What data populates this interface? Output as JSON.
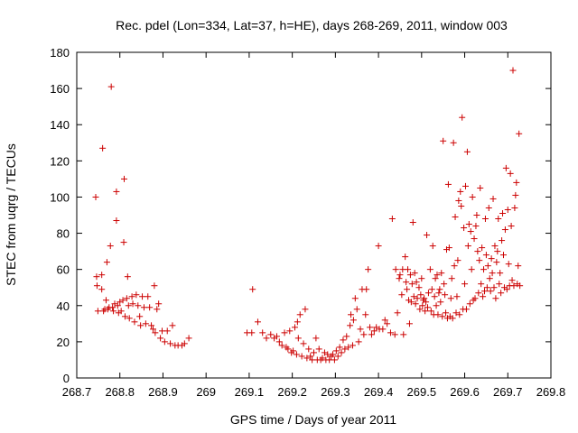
{
  "chart_data": {
    "type": "scatter",
    "title": "Rec. pdel (Lon=334, Lat=37, h=HE), days 268-269, 2011, window 003",
    "xlabel": "GPS time / Days of year 2011",
    "ylabel": "STEC from uqrg / TECUs",
    "xlim": [
      268.7,
      269.8
    ],
    "ylim": [
      0,
      180
    ],
    "x_ticks": [
      268.7,
      268.8,
      268.9,
      269.0,
      269.1,
      269.2,
      269.3,
      269.4,
      269.5,
      269.6,
      269.7,
      269.8
    ],
    "x_tick_labels": [
      "268.7",
      "268.8",
      "268.9",
      "269",
      "269.1",
      "269.2",
      "269.3",
      "269.4",
      "269.5",
      "269.6",
      "269.7",
      "269.8"
    ],
    "y_ticks": [
      0,
      20,
      40,
      60,
      80,
      100,
      120,
      140,
      160,
      180
    ],
    "y_tick_labels": [
      "0",
      "20",
      "40",
      "60",
      "80",
      "100",
      "120",
      "140",
      "160",
      "180"
    ],
    "grid": false,
    "marker": "+",
    "color": "#cc0000",
    "points": [
      [
        268.744,
        100
      ],
      [
        268.746,
        56
      ],
      [
        268.747,
        51
      ],
      [
        268.749,
        37
      ],
      [
        268.758,
        57
      ],
      [
        268.758,
        49
      ],
      [
        268.76,
        127
      ],
      [
        268.762,
        37
      ],
      [
        268.765,
        38
      ],
      [
        268.768,
        43
      ],
      [
        268.77,
        64
      ],
      [
        268.772,
        38
      ],
      [
        268.775,
        39
      ],
      [
        268.778,
        73
      ],
      [
        268.78,
        161
      ],
      [
        268.783,
        39
      ],
      [
        268.785,
        37
      ],
      [
        268.788,
        41
      ],
      [
        268.792,
        103
      ],
      [
        268.792,
        87
      ],
      [
        268.795,
        40
      ],
      [
        268.797,
        36
      ],
      [
        268.8,
        42
      ],
      [
        268.803,
        37
      ],
      [
        268.807,
        43
      ],
      [
        268.809,
        75
      ],
      [
        268.81,
        110
      ],
      [
        268.812,
        34
      ],
      [
        268.816,
        44
      ],
      [
        268.818,
        56
      ],
      [
        268.82,
        40
      ],
      [
        268.822,
        33
      ],
      [
        268.828,
        45
      ],
      [
        268.83,
        41
      ],
      [
        268.834,
        31
      ],
      [
        268.838,
        46
      ],
      [
        268.842,
        40
      ],
      [
        268.846,
        34
      ],
      [
        268.848,
        29
      ],
      [
        268.852,
        45
      ],
      [
        268.856,
        39
      ],
      [
        268.86,
        30
      ],
      [
        268.865,
        45
      ],
      [
        268.869,
        39
      ],
      [
        268.873,
        29
      ],
      [
        268.877,
        27
      ],
      [
        268.88,
        51
      ],
      [
        268.882,
        25
      ],
      [
        268.886,
        38
      ],
      [
        268.89,
        41
      ],
      [
        268.894,
        22
      ],
      [
        268.898,
        26
      ],
      [
        268.904,
        20
      ],
      [
        268.91,
        26
      ],
      [
        268.917,
        19
      ],
      [
        268.922,
        29
      ],
      [
        268.928,
        18
      ],
      [
        268.935,
        18
      ],
      [
        268.944,
        18
      ],
      [
        268.95,
        19
      ],
      [
        268.96,
        22
      ],
      [
        269.095,
        25
      ],
      [
        269.106,
        25
      ],
      [
        269.108,
        49
      ],
      [
        269.12,
        31
      ],
      [
        269.131,
        25
      ],
      [
        269.14,
        22
      ],
      [
        269.15,
        24
      ],
      [
        269.158,
        22
      ],
      [
        269.164,
        23
      ],
      [
        269.17,
        20
      ],
      [
        269.176,
        18
      ],
      [
        269.182,
        25
      ],
      [
        269.186,
        17
      ],
      [
        269.19,
        16
      ],
      [
        269.194,
        26
      ],
      [
        269.198,
        14
      ],
      [
        269.202,
        15
      ],
      [
        269.206,
        28
      ],
      [
        269.21,
        13
      ],
      [
        269.212,
        31
      ],
      [
        269.214,
        22
      ],
      [
        269.218,
        35
      ],
      [
        269.222,
        12
      ],
      [
        269.226,
        19
      ],
      [
        269.23,
        38
      ],
      [
        269.234,
        11
      ],
      [
        269.238,
        16
      ],
      [
        269.242,
        12
      ],
      [
        269.246,
        10
      ],
      [
        269.25,
        14
      ],
      [
        269.255,
        22
      ],
      [
        269.258,
        10
      ],
      [
        269.262,
        16
      ],
      [
        269.266,
        10
      ],
      [
        269.27,
        11
      ],
      [
        269.275,
        14
      ],
      [
        269.278,
        10
      ],
      [
        269.282,
        13
      ],
      [
        269.286,
        10
      ],
      [
        269.29,
        12
      ],
      [
        269.294,
        13
      ],
      [
        269.298,
        10
      ],
      [
        269.302,
        15
      ],
      [
        269.306,
        12
      ],
      [
        269.31,
        17
      ],
      [
        269.314,
        14
      ],
      [
        269.318,
        21
      ],
      [
        269.322,
        16
      ],
      [
        269.326,
        23
      ],
      [
        269.33,
        17
      ],
      [
        269.334,
        29
      ],
      [
        269.336,
        35
      ],
      [
        269.34,
        18
      ],
      [
        269.342,
        32
      ],
      [
        269.346,
        44
      ],
      [
        269.35,
        38
      ],
      [
        269.354,
        20
      ],
      [
        269.358,
        27
      ],
      [
        269.362,
        49
      ],
      [
        269.366,
        24
      ],
      [
        269.37,
        35
      ],
      [
        269.372,
        49
      ],
      [
        269.376,
        60
      ],
      [
        269.38,
        28
      ],
      [
        269.384,
        24
      ],
      [
        269.39,
        26
      ],
      [
        269.395,
        28
      ],
      [
        269.4,
        73
      ],
      [
        269.402,
        27
      ],
      [
        269.41,
        27
      ],
      [
        269.415,
        32
      ],
      [
        269.42,
        30
      ],
      [
        269.428,
        25
      ],
      [
        269.432,
        88
      ],
      [
        269.438,
        24
      ],
      [
        269.44,
        60
      ],
      [
        269.444,
        36
      ],
      [
        269.448,
        55
      ],
      [
        269.45,
        57
      ],
      [
        269.454,
        46
      ],
      [
        269.456,
        60
      ],
      [
        269.458,
        24
      ],
      [
        269.462,
        67
      ],
      [
        269.464,
        53
      ],
      [
        269.466,
        49
      ],
      [
        269.468,
        60
      ],
      [
        269.47,
        43
      ],
      [
        269.472,
        30
      ],
      [
        269.474,
        57
      ],
      [
        269.476,
        42
      ],
      [
        269.478,
        52
      ],
      [
        269.48,
        86
      ],
      [
        269.482,
        45
      ],
      [
        269.484,
        58
      ],
      [
        269.486,
        41
      ],
      [
        269.488,
        53
      ],
      [
        269.49,
        44
      ],
      [
        269.494,
        50
      ],
      [
        269.496,
        38
      ],
      [
        269.498,
        46
      ],
      [
        269.5,
        55
      ],
      [
        269.502,
        40
      ],
      [
        269.504,
        43
      ],
      [
        269.506,
        44
      ],
      [
        269.508,
        37
      ],
      [
        269.51,
        42
      ],
      [
        269.512,
        79
      ],
      [
        269.514,
        39
      ],
      [
        269.516,
        47
      ],
      [
        269.52,
        60
      ],
      [
        269.522,
        37
      ],
      [
        269.524,
        49
      ],
      [
        269.526,
        73
      ],
      [
        269.528,
        35
      ],
      [
        269.53,
        45
      ],
      [
        269.532,
        55
      ],
      [
        269.534,
        40
      ],
      [
        269.536,
        57
      ],
      [
        269.538,
        35
      ],
      [
        269.54,
        47
      ],
      [
        269.542,
        49
      ],
      [
        269.544,
        42
      ],
      [
        269.546,
        58
      ],
      [
        269.548,
        34
      ],
      [
        269.55,
        131
      ],
      [
        269.552,
        52
      ],
      [
        269.554,
        46
      ],
      [
        269.556,
        36
      ],
      [
        269.558,
        71
      ],
      [
        269.56,
        33
      ],
      [
        269.562,
        107
      ],
      [
        269.564,
        72
      ],
      [
        269.566,
        34
      ],
      [
        269.568,
        44
      ],
      [
        269.57,
        55
      ],
      [
        269.572,
        33
      ],
      [
        269.574,
        130
      ],
      [
        269.576,
        62
      ],
      [
        269.578,
        89
      ],
      [
        269.58,
        36
      ],
      [
        269.582,
        45
      ],
      [
        269.584,
        65
      ],
      [
        269.586,
        98
      ],
      [
        269.588,
        35
      ],
      [
        269.59,
        103
      ],
      [
        269.592,
        95
      ],
      [
        269.594,
        144
      ],
      [
        269.596,
        38
      ],
      [
        269.598,
        83
      ],
      [
        269.6,
        52
      ],
      [
        269.602,
        106
      ],
      [
        269.604,
        38
      ],
      [
        269.606,
        125
      ],
      [
        269.608,
        73
      ],
      [
        269.61,
        85
      ],
      [
        269.612,
        41
      ],
      [
        269.614,
        81
      ],
      [
        269.616,
        60
      ],
      [
        269.618,
        100
      ],
      [
        269.62,
        43
      ],
      [
        269.622,
        77
      ],
      [
        269.624,
        44
      ],
      [
        269.626,
        84
      ],
      [
        269.628,
        90
      ],
      [
        269.63,
        70
      ],
      [
        269.632,
        47
      ],
      [
        269.634,
        65
      ],
      [
        269.636,
        105
      ],
      [
        269.638,
        52
      ],
      [
        269.64,
        72
      ],
      [
        269.642,
        45
      ],
      [
        269.644,
        60
      ],
      [
        269.646,
        48
      ],
      [
        269.648,
        88
      ],
      [
        269.65,
        68
      ],
      [
        269.652,
        50
      ],
      [
        269.654,
        62
      ],
      [
        269.656,
        94
      ],
      [
        269.658,
        55
      ],
      [
        269.66,
        48
      ],
      [
        269.662,
        66
      ],
      [
        269.664,
        58
      ],
      [
        269.666,
        99
      ],
      [
        269.668,
        50
      ],
      [
        269.67,
        73
      ],
      [
        269.672,
        44
      ],
      [
        269.674,
        64
      ],
      [
        269.676,
        70
      ],
      [
        269.678,
        88
      ],
      [
        269.68,
        52
      ],
      [
        269.682,
        58
      ],
      [
        269.684,
        47
      ],
      [
        269.686,
        76
      ],
      [
        269.688,
        91
      ],
      [
        269.69,
        68
      ],
      [
        269.692,
        50
      ],
      [
        269.694,
        82
      ],
      [
        269.696,
        116
      ],
      [
        269.698,
        49
      ],
      [
        269.7,
        93
      ],
      [
        269.702,
        63
      ],
      [
        269.704,
        51
      ],
      [
        269.706,
        113
      ],
      [
        269.708,
        84
      ],
      [
        269.71,
        54
      ],
      [
        269.712,
        170
      ],
      [
        269.714,
        51
      ],
      [
        269.716,
        94
      ],
      [
        269.718,
        101
      ],
      [
        269.72,
        108
      ],
      [
        269.722,
        52
      ],
      [
        269.724,
        62
      ],
      [
        269.726,
        135
      ],
      [
        269.728,
        51
      ]
    ]
  }
}
